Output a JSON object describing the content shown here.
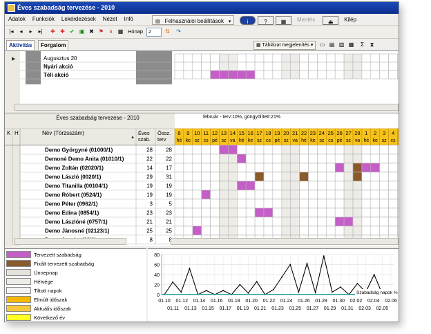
{
  "window": {
    "title": "Éves szabadság tervezése - 2010"
  },
  "menu": [
    "Adatok",
    "Funkciók",
    "Lekérdezések",
    "Nézet",
    "Infó"
  ],
  "toolbar": {
    "user_settings": "Felhasználói beállítások",
    "mentes": "Mentés",
    "kilep": "Kilép",
    "month_label": "Hónap",
    "month_value": "2"
  },
  "tabs": [
    "Aktivitás",
    "Forgalom"
  ],
  "table_display": "Táblázat megjelenítés",
  "activities": {
    "rows": [
      {
        "label": "Augusztus 20",
        "marked": []
      },
      {
        "label": "Nyári akció",
        "marked": []
      },
      {
        "label": "Téli akció",
        "marked": [
          4,
          5,
          6,
          7,
          8
        ]
      }
    ]
  },
  "grid": {
    "title": "Éves szabadság tervezése - 2010",
    "stats": "február - terv:10%, göngyölített:21%",
    "col_k": "K",
    "col_h": "H",
    "col_name": "Név (Törzsszám)",
    "col_eves": "Éves szab.",
    "col_ossz": "Össz. terv",
    "days": [
      {
        "d": "8",
        "w": "hé"
      },
      {
        "d": "9",
        "w": "ke"
      },
      {
        "d": "10",
        "w": "sz"
      },
      {
        "d": "11",
        "w": "cs"
      },
      {
        "d": "12",
        "w": "pé"
      },
      {
        "d": "13",
        "w": "sz"
      },
      {
        "d": "14",
        "w": "va"
      },
      {
        "d": "15",
        "w": "hé"
      },
      {
        "d": "16",
        "w": "ke"
      },
      {
        "d": "17",
        "w": "sz"
      },
      {
        "d": "18",
        "w": "cs"
      },
      {
        "d": "19",
        "w": "pé"
      },
      {
        "d": "20",
        "w": "sz"
      },
      {
        "d": "21",
        "w": "va"
      },
      {
        "d": "22",
        "w": "hé"
      },
      {
        "d": "23",
        "w": "ke"
      },
      {
        "d": "24",
        "w": "sz"
      },
      {
        "d": "25",
        "w": "cs"
      },
      {
        "d": "26",
        "w": "pé"
      },
      {
        "d": "27",
        "w": "sz"
      },
      {
        "d": "28",
        "w": "va"
      },
      {
        "d": "1",
        "w": "hé"
      },
      {
        "d": "2",
        "w": "ke"
      },
      {
        "d": "3",
        "w": "sz"
      },
      {
        "d": "4",
        "w": "cs"
      },
      {
        "d": "5",
        "w": "pé"
      },
      {
        "d": "6",
        "w": "sz"
      },
      {
        "d": "7",
        "w": "va"
      }
    ],
    "weekend_cols": [
      5,
      6,
      12,
      13,
      19,
      20,
      26,
      27
    ],
    "employees": [
      {
        "name": "Demo Györgyné (01000/1)",
        "eves": "28",
        "ossz": "28",
        "planned": [
          5,
          6,
          26
        ],
        "fixed": []
      },
      {
        "name": "Demoné Demo Anita (01010/1)",
        "eves": "22",
        "ossz": "22",
        "planned": [
          7
        ],
        "fixed": []
      },
      {
        "name": "Demo Zoltán (02020/1)",
        "eves": "14",
        "ossz": "17",
        "planned": [
          18,
          21,
          22
        ],
        "fixed": [
          20
        ]
      },
      {
        "name": "Demo László (0020/1)",
        "eves": "29",
        "ossz": "31",
        "planned": [],
        "fixed": [
          9,
          14,
          20
        ]
      },
      {
        "name": "Demo Titanilla (00104/1)",
        "eves": "19",
        "ossz": "19",
        "planned": [
          7,
          8
        ],
        "fixed": []
      },
      {
        "name": "Demo Róbert (0524/1)",
        "eves": "19",
        "ossz": "19",
        "planned": [
          3
        ],
        "fixed": []
      },
      {
        "name": "Demo Péter (0962/1)",
        "eves": "3",
        "ossz": "5",
        "planned": [],
        "fixed": []
      },
      {
        "name": "Demo Edina (0854/1)",
        "eves": "23",
        "ossz": "23",
        "planned": [
          9,
          10
        ],
        "fixed": []
      },
      {
        "name": "Demo Lászlóné (0757/1)",
        "eves": "21",
        "ossz": "21",
        "planned": [
          18,
          19
        ],
        "fixed": []
      },
      {
        "name": "Demo Jánosné (02123/1)",
        "eves": "25",
        "ossz": "25",
        "planned": [
          2
        ],
        "fixed": []
      },
      {
        "name": "Demo Aranka (08/1)",
        "eves": "8",
        "ossz": "8",
        "planned": [],
        "fixed": []
      }
    ]
  },
  "legend": [
    {
      "label": "Tervezett szabadság",
      "color": "#c55ec8"
    },
    {
      "label": "Fixált tervezett szabadság",
      "color": "#8b5a2b"
    },
    {
      "label": "Ünnepnap",
      "color": "#e6e3dc"
    },
    {
      "label": "Hétvége",
      "color": "#eeece7"
    },
    {
      "label": "Tiltott napok",
      "color": "#f3f3f3"
    },
    {
      "label": "Elmúlt időszak",
      "color": "#f6b800"
    },
    {
      "label": "Aktuális időszak",
      "color": "#f6c83a"
    },
    {
      "label": "Következő év",
      "color": "#ffff22"
    }
  ],
  "colors": {
    "header_orange": "#f6c21c",
    "planned": "#c55ec8",
    "fixed": "#8b5a2b"
  },
  "chart_data": {
    "type": "line",
    "series": [
      {
        "name": "Szabadság napok %",
        "values": [
          0,
          25,
          5,
          52,
          0,
          8,
          0,
          8,
          0,
          20,
          3,
          26,
          0,
          10,
          35,
          60,
          5,
          62,
          4,
          77,
          5,
          15,
          0,
          22,
          5,
          40,
          0,
          5
        ]
      }
    ],
    "x_top": [
      "01.10",
      "01.12",
      "01.14",
      "01.16",
      "01.18",
      "01.20",
      "01.22",
      "01.24",
      "01.26",
      "01.28",
      "01.30",
      "02.02",
      "02.04",
      "02.06"
    ],
    "x_bottom": [
      "01.11",
      "01.13",
      "01.15",
      "01.17",
      "01.19",
      "01.21",
      "01.23",
      "01.25",
      "01.27",
      "01.29",
      "01.31",
      "02.03",
      "02.05"
    ],
    "y_ticks": [
      "80",
      "60",
      "40",
      "20",
      "0"
    ],
    "ylim": [
      0,
      80
    ],
    "grid": true
  }
}
